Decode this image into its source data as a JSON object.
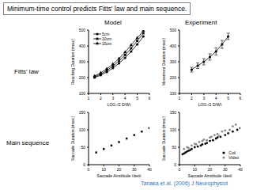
{
  "title": "Minimum-time control predicts Fitts' law and main sequence.",
  "column_headers": [
    "Model",
    "Experiment"
  ],
  "row_headers": [
    "Fitts' law",
    "Main sequence"
  ],
  "citation": "Tanaka et al. (2006) J Neurophysiol",
  "chart_data": [
    {
      "type": "line",
      "x_label": "LOG₂(2 D/W)",
      "y_label": "Reaching Duration (msec)",
      "x": [
        1.5,
        2,
        2.5,
        3,
        3.5,
        4,
        4.5,
        5,
        5.5
      ],
      "series": [
        {
          "name": "5cm",
          "color": "#000000",
          "marker": "circle",
          "values": [
            200,
            215,
            235,
            260,
            290,
            325,
            365,
            410,
            460
          ]
        },
        {
          "name": "10cm",
          "color": "#000000",
          "marker": "square",
          "values": [
            205,
            222,
            245,
            272,
            305,
            343,
            385,
            432,
            480
          ]
        },
        {
          "name": "15cm",
          "color": "#000000",
          "marker": "triangle",
          "values": [
            210,
            230,
            255,
            285,
            320,
            360,
            405,
            450,
            495
          ]
        }
      ],
      "xlim": [
        1,
        6
      ],
      "xticks": [
        1,
        2,
        3,
        4,
        5,
        6
      ],
      "ylim": [
        100,
        500
      ],
      "yticks": [
        100,
        200,
        300,
        400,
        500
      ],
      "legend": "upper left"
    },
    {
      "type": "line",
      "x_label": "LOG₂(2 D/W)",
      "y_label": "Movement Duration (msec)",
      "x": [
        2,
        2.5,
        3,
        3.5,
        4,
        4.5,
        5
      ],
      "values": [
        250,
        275,
        300,
        330,
        365,
        410,
        460
      ],
      "errors": [
        15,
        18,
        20,
        20,
        22,
        25,
        20
      ],
      "color": "#000000",
      "marker": "circle",
      "xlim": [
        1,
        6
      ],
      "xticks": [
        1,
        2,
        3,
        4,
        5,
        6
      ],
      "ylim": [
        100,
        500
      ],
      "yticks": [
        100,
        200,
        300,
        400,
        500
      ]
    },
    {
      "type": "scatter",
      "x_label": "Saccade Amplitude (deg)",
      "y_label": "Saccade Duration (msec)",
      "x": [
        5,
        10,
        15,
        20,
        25,
        30,
        35,
        40
      ],
      "values": [
        35,
        45,
        55,
        65,
        75,
        85,
        95,
        105
      ],
      "color": "#000000",
      "marker": "square",
      "xlim": [
        0,
        40
      ],
      "xticks": [
        0,
        10,
        20,
        30,
        40
      ],
      "ylim": [
        0,
        150
      ],
      "yticks": [
        0,
        50,
        100,
        150
      ]
    },
    {
      "type": "scatter",
      "x_label": "Saccade Amplitude (deg)",
      "y_label": "Saccade Duration (msec)",
      "series": [
        {
          "name": "Coil",
          "color": "#000000",
          "marker": "circle",
          "x": [
            2,
            3,
            4,
            5,
            6,
            7,
            8,
            10,
            12,
            14,
            15,
            17,
            18,
            20,
            22,
            24,
            25,
            27,
            30,
            32,
            35,
            38,
            40
          ],
          "values": [
            30,
            32,
            35,
            38,
            40,
            42,
            45,
            50,
            52,
            55,
            58,
            60,
            62,
            68,
            70,
            75,
            78,
            80,
            85,
            90,
            95,
            100,
            105
          ]
        },
        {
          "name": "Video",
          "color": "#888888",
          "marker": "circle",
          "x": [
            3,
            5,
            6,
            8,
            10,
            11,
            13,
            15,
            16,
            18,
            20,
            21,
            23,
            25,
            26,
            28,
            30,
            33,
            35,
            37
          ],
          "values": [
            45,
            50,
            48,
            55,
            60,
            58,
            65,
            68,
            72,
            70,
            78,
            80,
            85,
            88,
            82,
            95,
            98,
            100,
            110,
            115
          ]
        }
      ],
      "xlim": [
        0,
        40
      ],
      "xticks": [
        0,
        10,
        20,
        30,
        40
      ],
      "ylim": [
        0,
        150
      ],
      "yticks": [
        0,
        50,
        100,
        150
      ],
      "legend": "lower right"
    }
  ]
}
